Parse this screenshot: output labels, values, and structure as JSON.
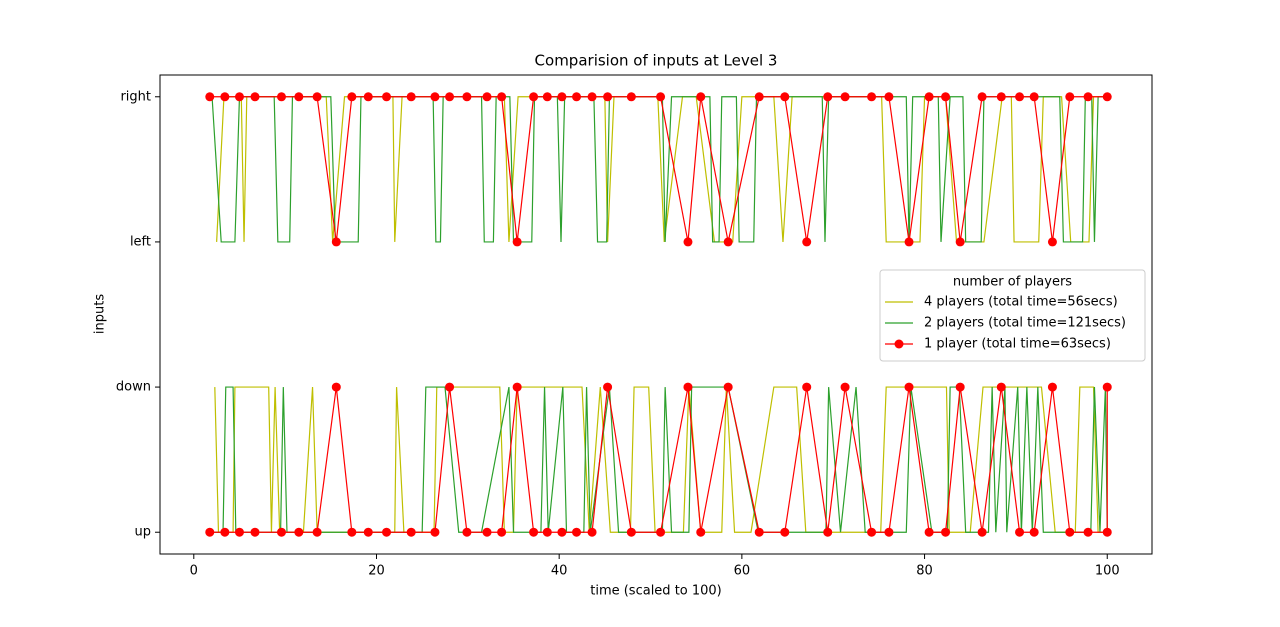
{
  "chart_data": {
    "type": "line",
    "title": "Comparision of inputs at Level 3",
    "x_label": "time (scaled to 100)",
    "y_label": "inputs",
    "xlim": [
      -3.7,
      104.9
    ],
    "ylim": [
      -0.15,
      3.15
    ],
    "xticks": [
      0,
      20,
      40,
      60,
      80,
      100
    ],
    "yticks": [
      {
        "value": 0,
        "label": "up"
      },
      {
        "value": 1,
        "label": "down"
      },
      {
        "value": 2,
        "label": "left"
      },
      {
        "value": 3,
        "label": "right"
      }
    ],
    "legend_title": "number of players",
    "legend": "center right",
    "series": [
      {
        "name": "4 players (total time=56secs)",
        "color": "#bfbf00",
        "x": [
          2.5,
          3.3,
          5.2,
          5.5,
          5.8,
          14.5,
          15.2,
          16.5,
          21.8,
          22,
          22.8,
          34,
          34.5,
          35.5,
          45,
          45.3,
          46,
          50.8,
          51.5,
          53.5,
          55,
          57,
          59,
          60,
          63.5,
          64.5,
          65.5,
          75.3,
          75.8,
          79.5,
          80,
          82.3,
          83.5,
          86.5,
          88.5,
          89.5,
          89.8,
          92.5,
          93,
          95,
          96,
          98,
          98.5,
          100
        ],
        "values": [
          2,
          3,
          3,
          2,
          3,
          3,
          2,
          3,
          3,
          2,
          3,
          3,
          2,
          3,
          3,
          2,
          3,
          3,
          2,
          3,
          3,
          2,
          2,
          3,
          3,
          2,
          3,
          3,
          2,
          2,
          3,
          3,
          2,
          2,
          3,
          3,
          2,
          2,
          3,
          3,
          2,
          2,
          3,
          3
        ]
      },
      {
        "color": "#bfbf00",
        "x": [
          2.3,
          2.7,
          4.3,
          4.5,
          8.2,
          8.5,
          8.9,
          9.4,
          12,
          13,
          13.5,
          22,
          22.2,
          23,
          26.3,
          26.6,
          33.5,
          34,
          35,
          35.4,
          42.5,
          43.3,
          44.5,
          45.6,
          47.8,
          48.2,
          49.8,
          50.5,
          53.6,
          54.2,
          55.5,
          57.8,
          58.3,
          59.2,
          61,
          63.5,
          66,
          67,
          75.2,
          75.8,
          82.4,
          82.7,
          85,
          86.4,
          92.8,
          94.3,
          96.5,
          97,
          98.5,
          99,
          100
        ],
        "values": [
          1,
          0,
          0,
          1,
          1,
          0,
          1,
          0,
          0,
          1,
          0,
          0,
          1,
          0,
          0,
          1,
          1,
          0,
          0,
          1,
          1,
          0,
          1,
          0,
          0,
          1,
          1,
          0,
          0,
          1,
          0,
          0,
          1,
          0,
          0,
          1,
          1,
          0,
          0,
          1,
          1,
          0,
          0,
          1,
          1,
          0,
          0,
          1,
          1,
          0,
          0
        ]
      },
      {
        "name": "2 players (total time=121secs)",
        "color": "#2ca02c",
        "x": [
          2,
          3,
          4.5,
          5,
          8.8,
          9.2,
          10.5,
          10.8,
          15,
          15.5,
          18,
          18.3,
          26.2,
          26.5,
          27,
          27.3,
          31.5,
          31.8,
          32.8,
          33.1,
          34.6,
          35,
          37,
          37.3,
          39.8,
          40.2,
          40.6,
          43.8,
          44.2,
          45.2,
          45.5,
          51.3,
          51.6,
          52.3,
          56.5,
          56.8,
          57.5,
          57.8,
          59.4,
          59.7,
          61.3,
          61.6,
          68.8,
          69.1,
          69.5,
          78,
          78.3,
          78.7,
          81.5,
          81.8,
          82.8,
          84.2,
          84.5,
          86.2,
          86.5,
          94.8,
          95.2,
          97.3,
          97.6,
          98.3,
          98.6,
          99,
          100
        ],
        "values": [
          3,
          2,
          2,
          3,
          3,
          2,
          2,
          3,
          3,
          2,
          2,
          3,
          3,
          2,
          2,
          3,
          3,
          2,
          2,
          3,
          3,
          2,
          2,
          3,
          3,
          2,
          3,
          3,
          2,
          2,
          3,
          3,
          2,
          3,
          3,
          2,
          2,
          3,
          3,
          2,
          2,
          3,
          3,
          2,
          3,
          3,
          2,
          3,
          3,
          2,
          3,
          3,
          2,
          2,
          3,
          3,
          2,
          2,
          3,
          3,
          2,
          3,
          3
        ]
      },
      {
        "color": "#2ca02c",
        "x": [
          2,
          3.2,
          3.5,
          4.3,
          4.6,
          9.5,
          9.8,
          10.2,
          25,
          25.4,
          27.5,
          29,
          31.5,
          34.5,
          35,
          38,
          38.4,
          38.8,
          40.4,
          40.8,
          42.7,
          43,
          43.4,
          45.5,
          46.5,
          51.3,
          51.6,
          52.3,
          54.2,
          54.5,
          58.5,
          61.8,
          69.2,
          69.5,
          70.8,
          72.5,
          73.5,
          78,
          78.5,
          80.8,
          82.5,
          82.8,
          83.8,
          84.5,
          87,
          87.4,
          87.8,
          88.8,
          89,
          90.2,
          90.6,
          91.2,
          91.8,
          92.4,
          93,
          98.2,
          98.6,
          99.2,
          99.8,
          100
        ],
        "values": [
          0,
          0,
          1,
          1,
          0,
          0,
          1,
          0,
          0,
          1,
          1,
          0,
          0,
          1,
          0,
          0,
          1,
          0,
          1,
          0,
          0,
          1,
          0,
          1,
          0,
          0,
          1,
          0,
          0,
          1,
          1,
          0,
          0,
          1,
          0,
          1,
          0,
          0,
          1,
          0,
          0,
          1,
          1,
          0,
          0,
          1,
          0,
          1,
          0,
          1,
          0,
          1,
          0,
          1,
          0,
          0,
          1,
          0,
          1,
          0
        ]
      },
      {
        "name": "1 player (total time=63secs)",
        "color": "#ff0000",
        "marker": true,
        "x": [
          1.75,
          3.4,
          5,
          6.7,
          9.6,
          11.5,
          13.5,
          15.6,
          17.3,
          19.1,
          21.1,
          23.8,
          26.4,
          28,
          29.9,
          32.1,
          33.7,
          35.4,
          37.2,
          38.7,
          40.3,
          41.9,
          43.6,
          45.3,
          47.9,
          51.1,
          54.1,
          55.5,
          58.5,
          61.9,
          64.7,
          67.1,
          69.4,
          71.3,
          74.2,
          76.1,
          78.3,
          80.5,
          82.3,
          83.9,
          86.3,
          88.4,
          90.4,
          92,
          94,
          95.9,
          97.9,
          100
        ],
        "values": [
          3,
          3,
          3,
          3,
          3,
          3,
          3,
          2,
          3,
          3,
          3,
          3,
          3,
          3,
          3,
          3,
          3,
          2,
          3,
          3,
          3,
          3,
          3,
          3,
          3,
          3,
          2,
          3,
          2,
          3,
          3,
          2,
          3,
          3,
          3,
          3,
          2,
          3,
          3,
          2,
          3,
          3,
          3,
          3,
          2,
          3,
          3,
          3
        ]
      },
      {
        "color": "#ff0000",
        "marker": true,
        "x": [
          1.75,
          3.4,
          5,
          6.7,
          9.6,
          11.5,
          13.5,
          15.6,
          17.3,
          19.1,
          21.1,
          23.8,
          26.4,
          28,
          29.9,
          32.1,
          33.7,
          35.4,
          37.2,
          38.7,
          40.3,
          41.9,
          43.6,
          45.3,
          47.9,
          51.1,
          54.1,
          55.5,
          58.5,
          61.9,
          64.7,
          67.1,
          69.4,
          71.3,
          74.2,
          76.1,
          78.3,
          80.5,
          82.3,
          83.9,
          86.3,
          88.4,
          90.4,
          92,
          94,
          95.9,
          97.9,
          100,
          100
        ],
        "values": [
          0,
          0,
          0,
          0,
          0,
          0,
          0,
          1,
          0,
          0,
          0,
          0,
          0,
          1,
          0,
          0,
          0,
          1,
          0,
          0,
          0,
          0,
          0,
          1,
          0,
          0,
          1,
          0,
          1,
          0,
          0,
          1,
          0,
          1,
          0,
          0,
          1,
          0,
          0,
          1,
          0,
          1,
          0,
          0,
          1,
          0,
          0,
          0,
          1
        ]
      }
    ]
  }
}
